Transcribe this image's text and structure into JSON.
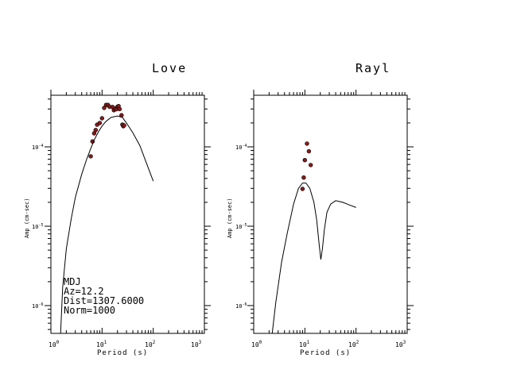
{
  "chart_data": [
    {
      "type": "scatter",
      "title": "Love",
      "xlabel": "Period (s)",
      "ylabel": "Amp (cm-sec)",
      "xscale": "log",
      "yscale": "log",
      "xlim": [
        1,
        1000
      ],
      "ylim": [
        6e-08,
        5e-07
      ],
      "x_ticks": [
        "10^0",
        "10^1",
        "10^2",
        "10^3"
      ],
      "y_ticks": [
        "10^-6",
        "10^-5",
        "10^-4"
      ],
      "annotations": [
        "MDJ",
        "Az=12.2",
        "Dist=1307.6000",
        "Norm=1000"
      ],
      "series": [
        {
          "role": "observed",
          "points": [
            [
              6.0,
              7.6e-05
            ],
            [
              6.5,
              0.000117
            ],
            [
              7.0,
              0.000148
            ],
            [
              7.5,
              0.000163
            ],
            [
              8.0,
              0.00019
            ],
            [
              9.0,
              0.0002
            ],
            [
              10.0,
              0.000229
            ],
            [
              11.0,
              0.00031
            ],
            [
              12.0,
              0.000337
            ],
            [
              13.0,
              0.000337
            ],
            [
              14.0,
              0.00032
            ],
            [
              16.0,
              0.000318
            ],
            [
              17.0,
              0.00029
            ],
            [
              18.0,
              0.000302
            ],
            [
              19.0,
              0.000298
            ],
            [
              20.0,
              0.00032
            ],
            [
              21.0,
              0.000326
            ],
            [
              22.0,
              0.000299
            ],
            [
              24.0,
              0.00025
            ],
            [
              25.0,
              0.000191
            ],
            [
              26.0,
              0.000182
            ],
            [
              27.0,
              0.000186
            ]
          ]
        },
        {
          "role": "model",
          "points": [
            [
              1.55,
              4.5e-07
            ],
            [
              1.7,
              1.7e-06
            ],
            [
              2.0,
              5.2e-06
            ],
            [
              2.5,
              1.25e-05
            ],
            [
              3.0,
              2.3e-05
            ],
            [
              4.0,
              4.5e-05
            ],
            [
              5.0,
              7e-05
            ],
            [
              6.0,
              9.5e-05
            ],
            [
              7.0,
              0.000122
            ],
            [
              8.5,
              0.000155
            ],
            [
              10.0,
              0.000183
            ],
            [
              12.0,
              0.00021
            ],
            [
              15.0,
              0.000235
            ],
            [
              20.0,
              0.000245
            ],
            [
              25.0,
              0.000235
            ],
            [
              30.0,
              0.0002
            ],
            [
              40.0,
              0.00015
            ],
            [
              55.0,
              0.000103
            ],
            [
              70.0,
              6.8e-05
            ],
            [
              100.0,
              3.7e-05
            ]
          ]
        }
      ]
    },
    {
      "type": "scatter",
      "title": "Rayl",
      "xlabel": "Period (s)",
      "ylabel": "Amp (cm-sec)",
      "xscale": "log",
      "yscale": "log",
      "xlim": [
        1,
        1000
      ],
      "ylim": [
        4e-07,
        5e-07
      ],
      "x_ticks": [
        "10^0",
        "10^1",
        "10^2",
        "10^3"
      ],
      "y_ticks": [
        "10^-6",
        "10^-5",
        "10^-4"
      ],
      "series": [
        {
          "role": "observed",
          "points": [
            [
              9.0,
              2.95e-05
            ],
            [
              9.5,
              4.1e-05
            ],
            [
              10.0,
              6.8e-05
            ],
            [
              11.0,
              0.00011
            ],
            [
              12.0,
              8.8e-05
            ],
            [
              13.0,
              5.9e-05
            ]
          ]
        },
        {
          "role": "model",
          "points": [
            [
              2.3,
              4.5e-07
            ],
            [
              2.7,
              1.1e-06
            ],
            [
              3.5,
              3.5e-06
            ],
            [
              4.5,
              8e-06
            ],
            [
              6.0,
              1.9e-05
            ],
            [
              7.5,
              3e-05
            ],
            [
              9.0,
              3.5e-05
            ],
            [
              10.5,
              3.5e-05
            ],
            [
              12.5,
              3e-05
            ],
            [
              15.0,
              2e-05
            ],
            [
              17.0,
              1.2e-05
            ],
            [
              19.0,
              5.9e-06
            ],
            [
              20.5,
              3.8e-06
            ],
            [
              22.0,
              5.2e-06
            ],
            [
              24.0,
              9e-06
            ],
            [
              27.0,
              1.5e-05
            ],
            [
              32.0,
              1.9e-05
            ],
            [
              40.0,
              2.1e-05
            ],
            [
              55.0,
              2e-05
            ],
            [
              75.0,
              1.85e-05
            ],
            [
              100.0,
              1.72e-05
            ]
          ]
        }
      ]
    }
  ]
}
